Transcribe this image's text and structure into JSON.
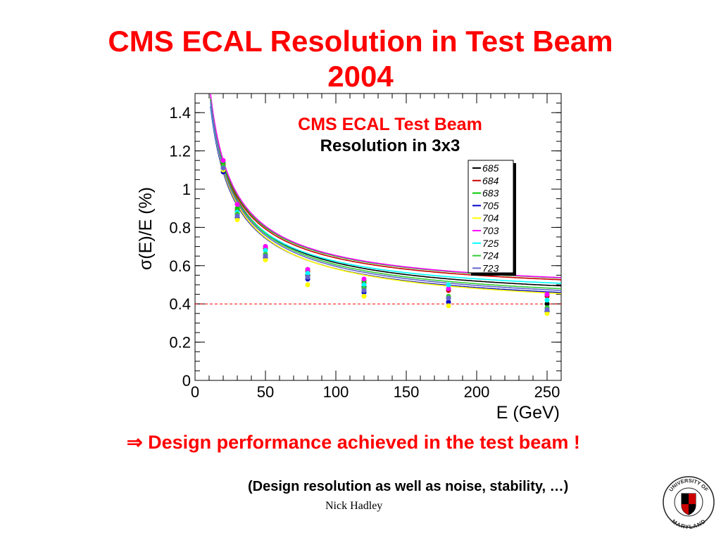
{
  "slide": {
    "title_line1": "CMS ECAL Resolution in Test Beam",
    "title_line2": "2004",
    "conclusion_arrow": "⇒",
    "conclusion_text": "Design performance achieved in the test beam !",
    "footnote": "(Design resolution as well as noise, stability, …)",
    "author": "Nick Hadley",
    "logo": {
      "icon": "university-of-maryland-seal-icon",
      "text_top": "UNIVERSITY OF",
      "text_bottom": "MARYLAND"
    }
  },
  "colors": {
    "title": "#ff0000",
    "conclusion": "#ff0000",
    "reference_line": "#ff0000",
    "legend_title": "#ff0000"
  },
  "chart_data": {
    "type": "scatter",
    "title": "CMS ECAL Test Beam",
    "subtitle": "Resolution in 3x3",
    "xlabel": "E (GeV)",
    "ylabel": "σ(E)/E (%)",
    "xlim": [
      0,
      260
    ],
    "ylim": [
      0,
      1.5
    ],
    "xticks": [
      0,
      50,
      100,
      150,
      200,
      250
    ],
    "yticks": [
      0,
      0.2,
      0.4,
      0.6,
      0.8,
      1,
      1.2,
      1.4
    ],
    "xtick_labels": [
      "0",
      "50",
      "100",
      "150",
      "200",
      "250"
    ],
    "ytick_labels": [
      "0",
      "0.2",
      "0.4",
      "0.6",
      "0.8",
      "1",
      "1.2",
      "1.4"
    ],
    "reference_line": {
      "y": 0.4,
      "style": "dashed"
    },
    "grid": false,
    "legend": {
      "placement": "top-right"
    },
    "x": [
      20,
      30,
      50,
      80,
      120,
      180,
      250
    ],
    "series": [
      {
        "name": "685",
        "color": "#000000",
        "values": [
          1.12,
          0.87,
          0.66,
          0.55,
          0.49,
          0.43,
          0.4
        ],
        "fit": [
          0.0,
          0.4
        ]
      },
      {
        "name": "684",
        "color": "#cc0000",
        "values": [
          1.13,
          0.89,
          0.69,
          0.57,
          0.51,
          0.47,
          0.44
        ],
        "fit": [
          0.0,
          0.44
        ]
      },
      {
        "name": "683",
        "color": "#00cc00",
        "values": [
          1.14,
          0.9,
          0.7,
          0.58,
          0.52,
          0.48,
          0.45
        ],
        "fit": [
          0.0,
          0.45
        ]
      },
      {
        "name": "705",
        "color": "#0000cc",
        "values": [
          1.09,
          0.85,
          0.64,
          0.53,
          0.46,
          0.41,
          0.36
        ],
        "fit": [
          0.0,
          0.36
        ]
      },
      {
        "name": "704",
        "color": "#ffff00",
        "values": [
          1.1,
          0.84,
          0.63,
          0.5,
          0.44,
          0.39,
          0.35
        ],
        "fit": [
          0.0,
          0.35
        ]
      },
      {
        "name": "703",
        "color": "#ff00ff",
        "values": [
          1.15,
          0.92,
          0.7,
          0.58,
          0.53,
          0.48,
          0.45
        ],
        "fit": [
          0.0,
          0.45
        ]
      },
      {
        "name": "725",
        "color": "#00ffff",
        "values": [
          1.11,
          0.88,
          0.68,
          0.56,
          0.5,
          0.5,
          0.42
        ],
        "fit": [
          0.0,
          0.42
        ]
      },
      {
        "name": "724",
        "color": "#33cc33",
        "values": [
          1.12,
          0.87,
          0.66,
          0.54,
          0.48,
          0.44,
          0.38
        ],
        "fit": [
          0.0,
          0.38
        ]
      },
      {
        "name": "723",
        "color": "#6666cc",
        "values": [
          1.11,
          0.86,
          0.65,
          0.54,
          0.47,
          0.43,
          0.37
        ],
        "fit": [
          0.0,
          0.37
        ]
      }
    ]
  }
}
